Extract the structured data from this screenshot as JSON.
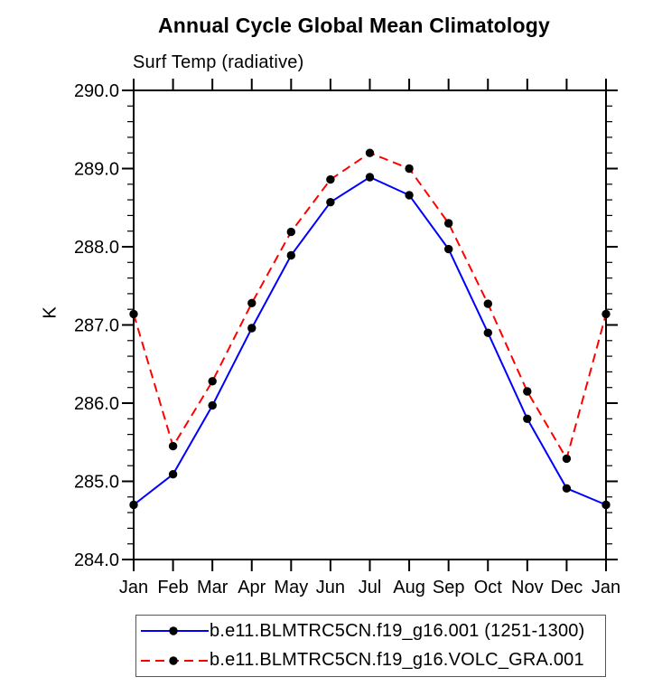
{
  "chart_data": {
    "type": "line",
    "title": "Annual Cycle Global Mean Climatology",
    "subtitle": "Surf Temp (radiative)",
    "ylabel": "K",
    "xlabel": "",
    "categories": [
      "Jan",
      "Feb",
      "Mar",
      "Apr",
      "May",
      "Jun",
      "Jul",
      "Aug",
      "Sep",
      "Oct",
      "Nov",
      "Dec",
      "Jan"
    ],
    "ylim": [
      284.0,
      290.0
    ],
    "y_major_step": 1.0,
    "y_minor_step": 0.2,
    "y_tick_labels": [
      "284.0",
      "285.0",
      "286.0",
      "287.0",
      "288.0",
      "289.0",
      "290.0"
    ],
    "grid": false,
    "legend_position": "bottom",
    "background_color": "#ffffff",
    "axis_color": "#000000",
    "series": [
      {
        "name": "b.e11.BLMTRC5CN.f19_g16.001 (1251-1300)",
        "color": "#0000ff",
        "line_style": "solid",
        "marker": "filled-circle",
        "marker_color": "#000000",
        "values": [
          284.7,
          285.09,
          285.97,
          286.96,
          287.89,
          288.57,
          288.89,
          288.66,
          287.97,
          286.9,
          285.8,
          284.91,
          284.7
        ]
      },
      {
        "name": "b.e11.BLMTRC5CN.f19_g16.VOLC_GRA.001",
        "color": "#ff0000",
        "line_style": "dashed",
        "marker": "filled-circle",
        "marker_color": "#000000",
        "values": [
          287.14,
          285.45,
          286.28,
          287.28,
          288.19,
          288.86,
          289.2,
          289.0,
          288.3,
          287.27,
          286.15,
          285.29,
          287.14
        ]
      }
    ]
  }
}
